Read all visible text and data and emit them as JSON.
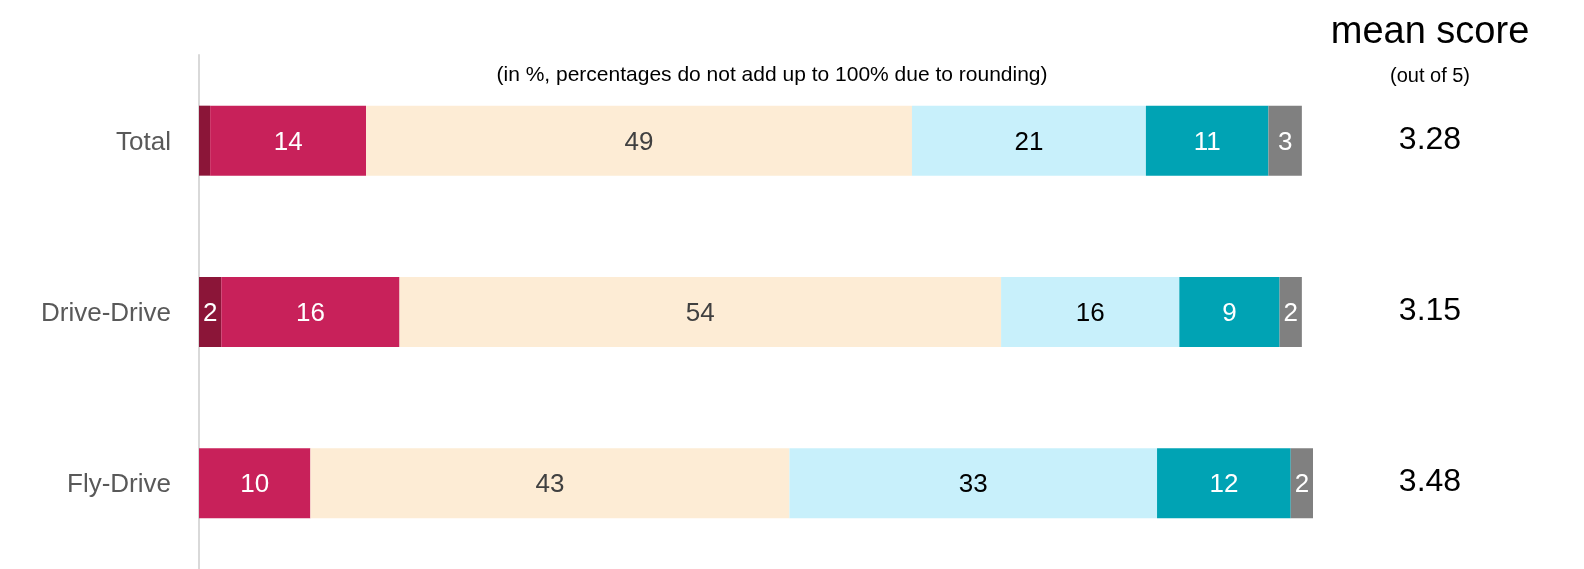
{
  "chart_data": {
    "type": "bar",
    "orientation": "horizontal",
    "stacked": true,
    "subtitle": "(in %, percentages do not add up to 100% due to rounding)",
    "categories": [
      "Total",
      "Drive-Drive",
      "Fly-Drive"
    ],
    "series": [
      {
        "color": "#8b1538",
        "values": [
          1,
          2,
          0
        ],
        "value_labels": [
          null,
          "2",
          null
        ]
      },
      {
        "color": "#c8215a",
        "values": [
          14,
          16,
          10
        ],
        "value_labels": [
          "14",
          "16",
          "10"
        ]
      },
      {
        "color": "#fdecd5",
        "values": [
          49,
          54,
          43
        ],
        "value_labels": [
          "49",
          "54",
          "43"
        ]
      },
      {
        "color": "#c8f0fb",
        "values": [
          21,
          16,
          33
        ],
        "value_labels": [
          "21",
          "16",
          "33"
        ]
      },
      {
        "color": "#00a3b4",
        "values": [
          11,
          9,
          12
        ],
        "value_labels": [
          "11",
          "9",
          "12"
        ]
      },
      {
        "color": "#808080",
        "values": [
          3,
          2,
          2
        ],
        "value_labels": [
          "3",
          "2",
          "2"
        ]
      }
    ],
    "xlim": [
      0,
      100
    ],
    "tick_labels": "y",
    "grid": false,
    "annotations": [
      "mean score",
      "(out of 5)",
      "3.28",
      "3.15",
      "3.48"
    ]
  }
}
